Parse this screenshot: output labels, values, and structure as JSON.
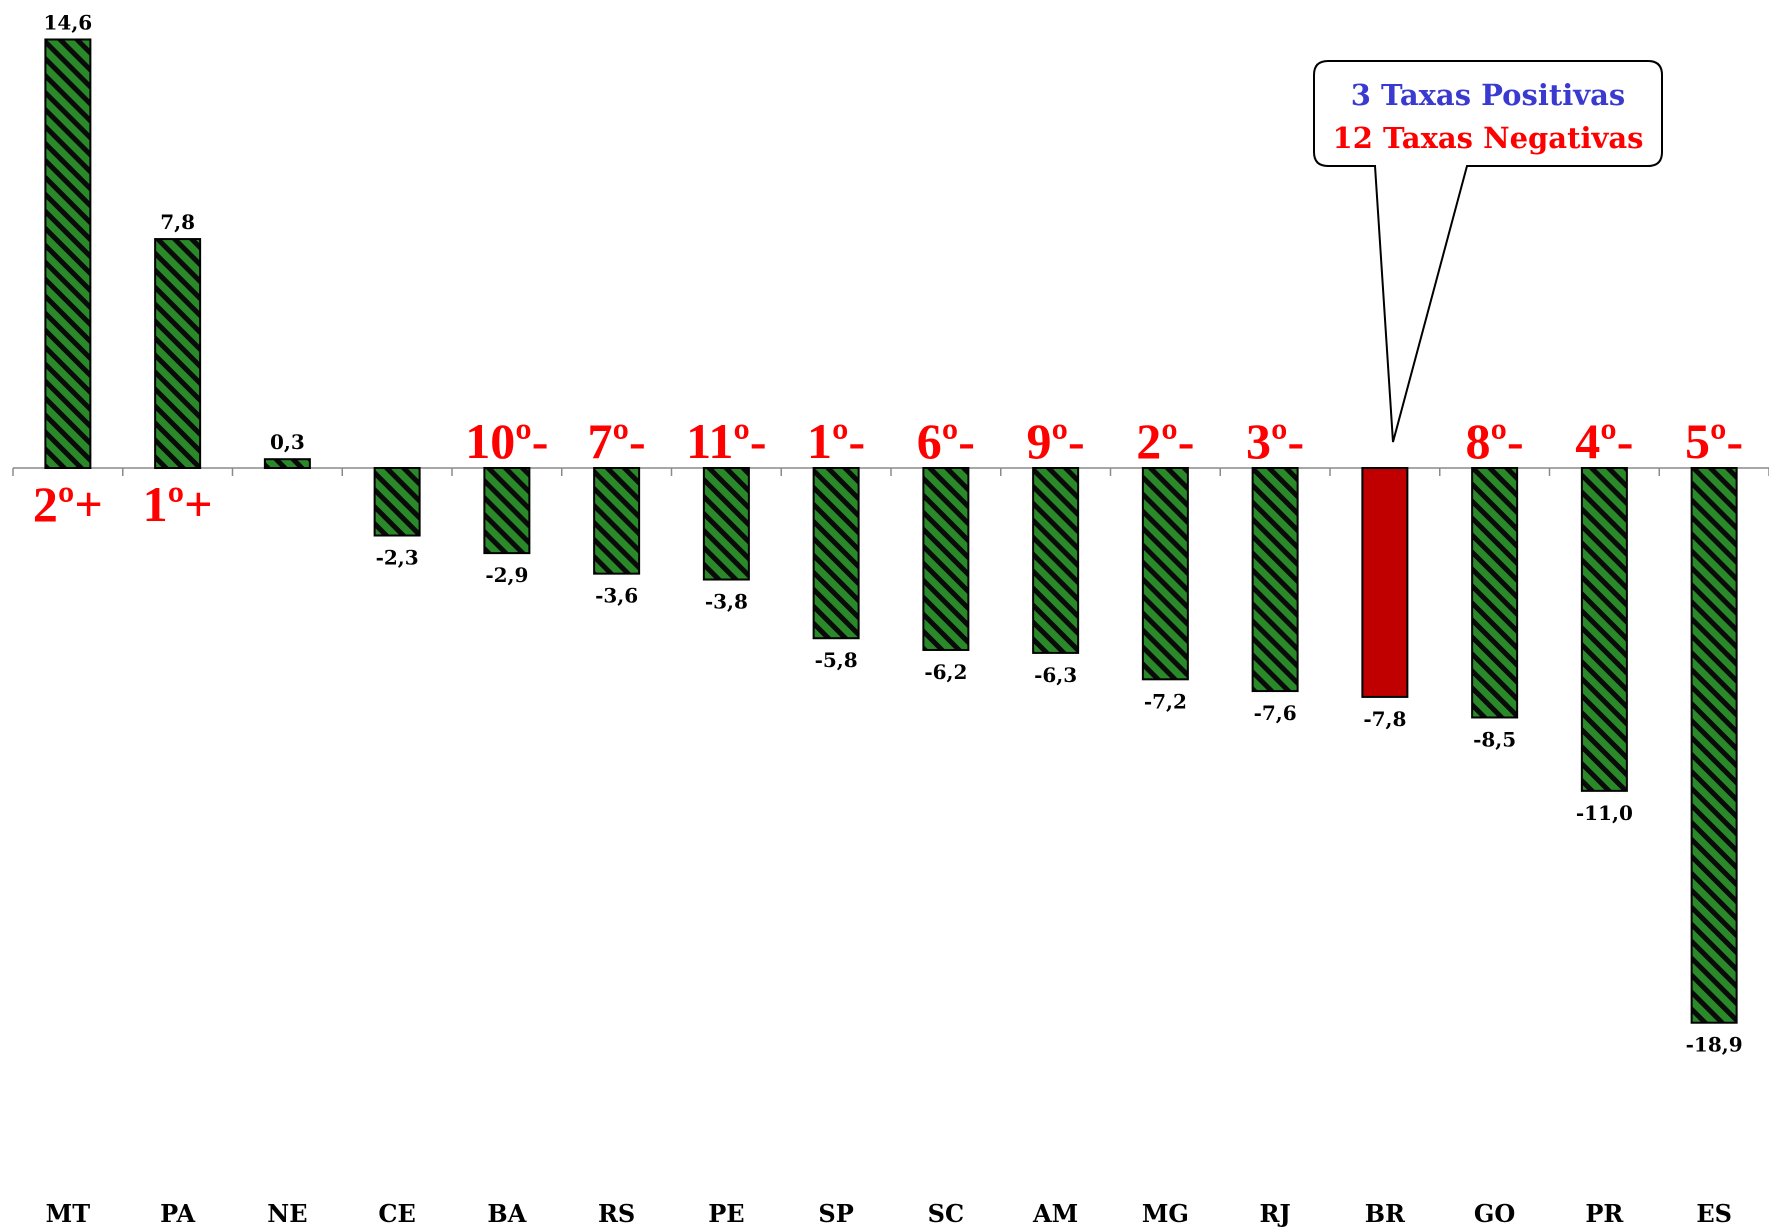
{
  "chart_data": {
    "type": "bar",
    "categories": [
      "MT",
      "PA",
      "NE",
      "CE",
      "BA",
      "RS",
      "PE",
      "SP",
      "SC",
      "AM",
      "MG",
      "RJ",
      "BR",
      "GO",
      "PR",
      "ES"
    ],
    "values": [
      14.6,
      7.8,
      0.3,
      -2.3,
      -2.9,
      -3.6,
      -3.8,
      -5.8,
      -6.2,
      -6.3,
      -7.2,
      -7.6,
      -7.8,
      -8.5,
      -11.0,
      -18.9
    ],
    "value_labels": [
      "14,6",
      "7,8",
      "0,3",
      "-2,3",
      "-2,9",
      "-3,6",
      "-3,8",
      "-5,8",
      "-6,2",
      "-6,3",
      "-7,2",
      "-7,6",
      "-7,8",
      "-8,5",
      "-11,0",
      "-18,9"
    ],
    "rank_labels": [
      "2º+",
      "1º+",
      "",
      "",
      "10º-",
      "7º-",
      "11º-",
      "1º-",
      "6º-",
      "9º-",
      "2º-",
      "3º-",
      "",
      "8º-",
      "4º-",
      "5º-"
    ],
    "highlight_category": "BR",
    "colors": {
      "bar_fill": "#2a8a2a",
      "bar_stripe": "#0a0a0a",
      "highlight_fill": "#c00000",
      "rank_text": "#ff0000",
      "callout_positive": "#3a3ad0",
      "callout_negative": "#ff0000"
    },
    "callout": {
      "line1": "3 Taxas Positivas",
      "line2": "12 Taxas Negativas"
    },
    "ylim": [
      -19,
      15
    ],
    "grid": false,
    "legend": "none"
  }
}
